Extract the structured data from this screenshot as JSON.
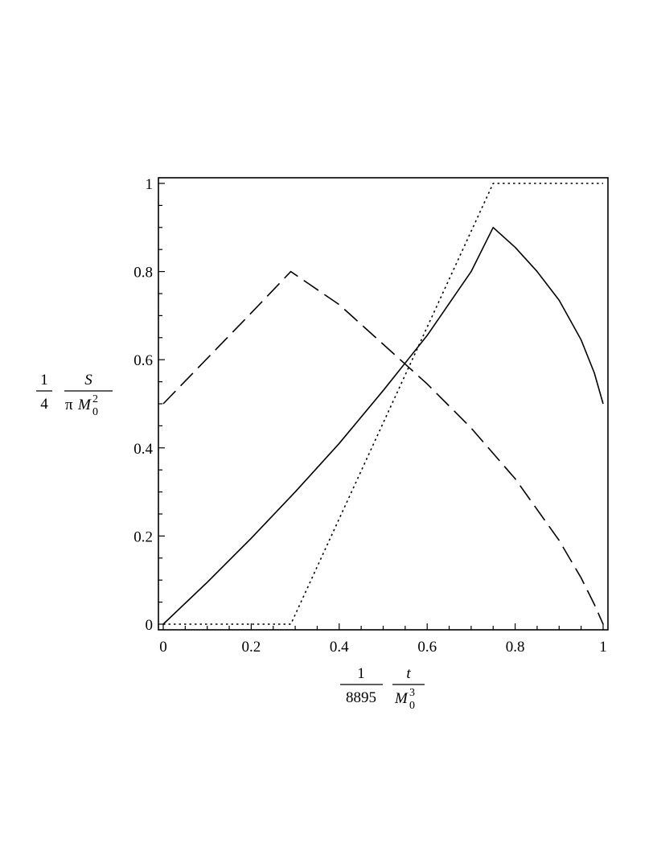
{
  "chart_data": {
    "type": "line",
    "title": "",
    "xlim": [
      0,
      1
    ],
    "ylim": [
      0,
      1
    ],
    "grid": false,
    "legend": "none",
    "x_ticks": [
      "0",
      "0.2",
      "0.4",
      "0.6",
      "0.8",
      "1"
    ],
    "y_ticks": [
      "0",
      "0.2",
      "0.4",
      "0.6",
      "0.8",
      "1"
    ],
    "xlabel": {
      "coef_num": "1",
      "coef_den": "8895",
      "num": "t",
      "den_base": "M",
      "den_sub": "0",
      "den_sup": "3"
    },
    "ylabel": {
      "coef_num": "1",
      "coef_den": "4",
      "num": "S",
      "den_prefix": "π",
      "den_base": "M",
      "den_sub": "0",
      "den_sup": "2"
    },
    "series": [
      {
        "style": "solid",
        "x": [
          0,
          0.1,
          0.2,
          0.3,
          0.4,
          0.5,
          0.6,
          0.7,
          0.75,
          0.8,
          0.85,
          0.9,
          0.95,
          0.98,
          1.0
        ],
        "y": [
          0,
          0.095,
          0.195,
          0.3,
          0.41,
          0.53,
          0.655,
          0.8,
          0.9,
          0.855,
          0.8,
          0.735,
          0.645,
          0.57,
          0.5
        ]
      },
      {
        "style": "dashed",
        "x": [
          0,
          0.1,
          0.2,
          0.29,
          0.4,
          0.5,
          0.6,
          0.7,
          0.8,
          0.9,
          0.95,
          0.98,
          1.0
        ],
        "y": [
          0.5,
          0.603,
          0.706,
          0.8,
          0.725,
          0.635,
          0.545,
          0.445,
          0.33,
          0.19,
          0.105,
          0.045,
          0
        ]
      },
      {
        "style": "dotted",
        "x": [
          0,
          0.29,
          0.75,
          1.0
        ],
        "y": [
          0,
          0,
          1,
          1
        ]
      }
    ]
  }
}
